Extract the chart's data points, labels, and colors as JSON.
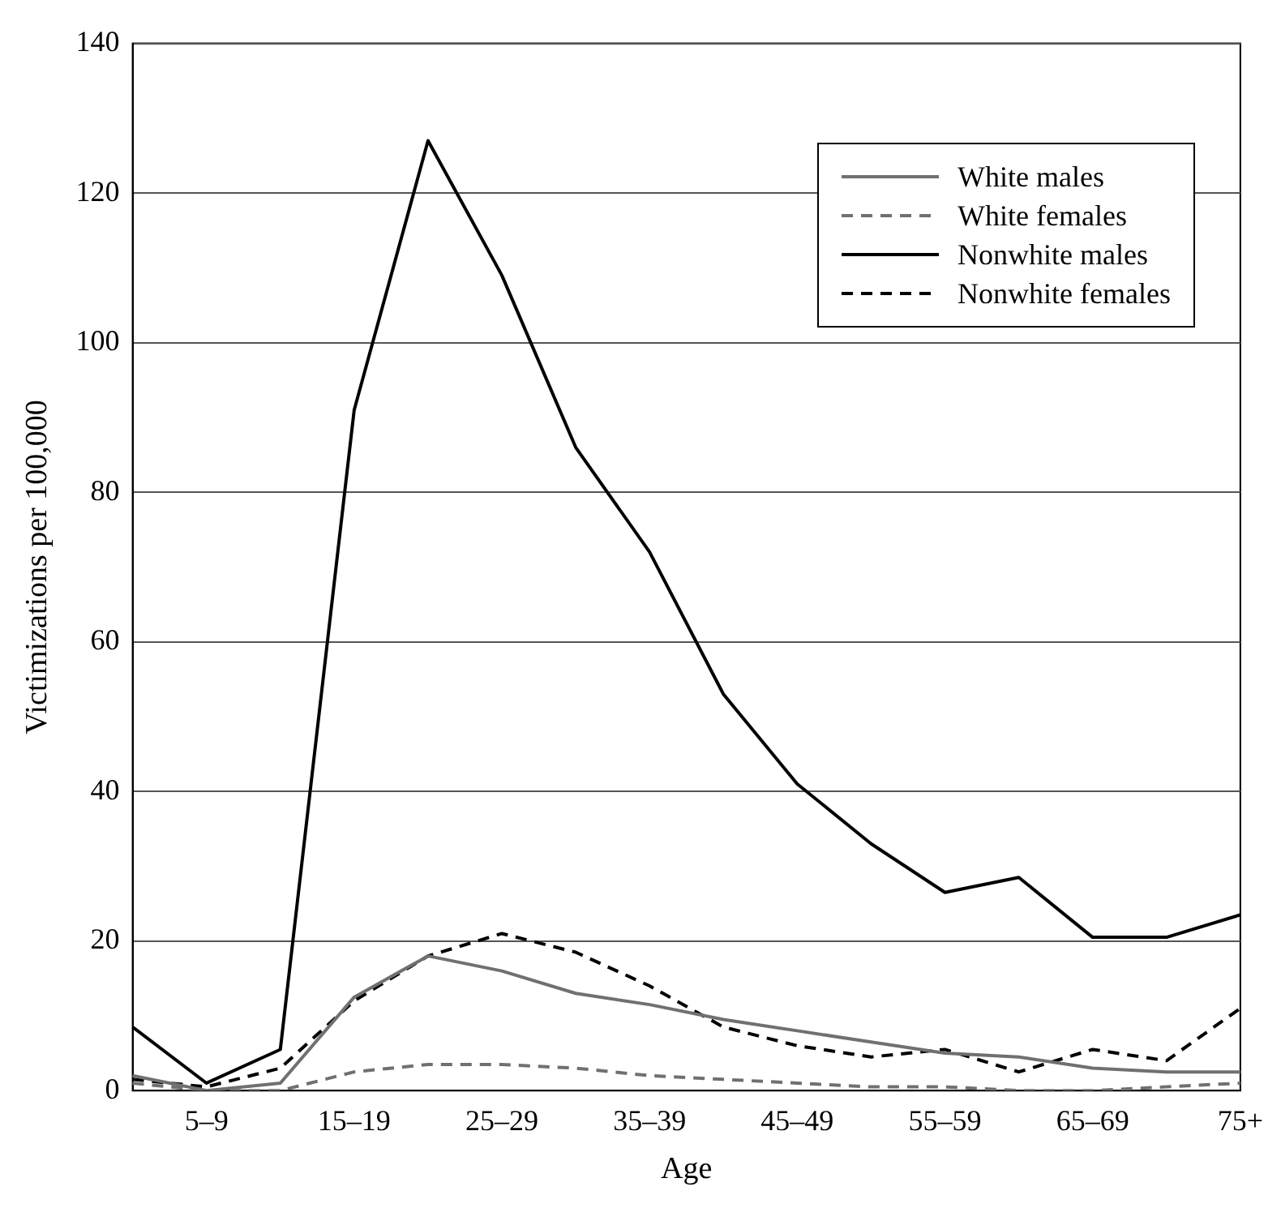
{
  "chart_data": {
    "type": "line",
    "xlabel": "Age",
    "ylabel": "Victimizations per 100,000",
    "categories": [
      null,
      "5–9",
      null,
      "15–19",
      null,
      "25–29",
      null,
      "35–39",
      null,
      "45–49",
      null,
      "55–59",
      null,
      "65–69",
      null,
      "75+"
    ],
    "series": [
      {
        "name": "White males",
        "color": "#707070",
        "line_style": "solid",
        "values": [
          2,
          0,
          1,
          12.5,
          18,
          16,
          13,
          11.5,
          9.5,
          8,
          6.5,
          5,
          4.5,
          3,
          2.5,
          2.5
        ]
      },
      {
        "name": "White females",
        "color": "#707070",
        "line_style": "dashed",
        "values": [
          1,
          0,
          0,
          2.5,
          3.5,
          3.5,
          3,
          2,
          1.5,
          1,
          0.5,
          0.5,
          0,
          0,
          0.5,
          1
        ]
      },
      {
        "name": "Nonwhite males",
        "color": "#000000",
        "line_style": "solid",
        "values": [
          8.5,
          1,
          5.5,
          91,
          127,
          109,
          86,
          72,
          53,
          41,
          33,
          26.5,
          28.5,
          20.5,
          20.5,
          23.5
        ]
      },
      {
        "name": "Nonwhite females",
        "color": "#000000",
        "line_style": "dashed",
        "values": [
          1.5,
          0.5,
          3,
          12,
          18,
          21,
          18.5,
          14,
          8.5,
          6,
          4.5,
          5.5,
          2.5,
          5.5,
          4,
          11
        ]
      }
    ],
    "ylim": [
      0,
      140
    ],
    "yticks": [
      0,
      20,
      40,
      60,
      80,
      100,
      120,
      140
    ],
    "grid": "y",
    "legend": "top right",
    "marker": "none"
  }
}
